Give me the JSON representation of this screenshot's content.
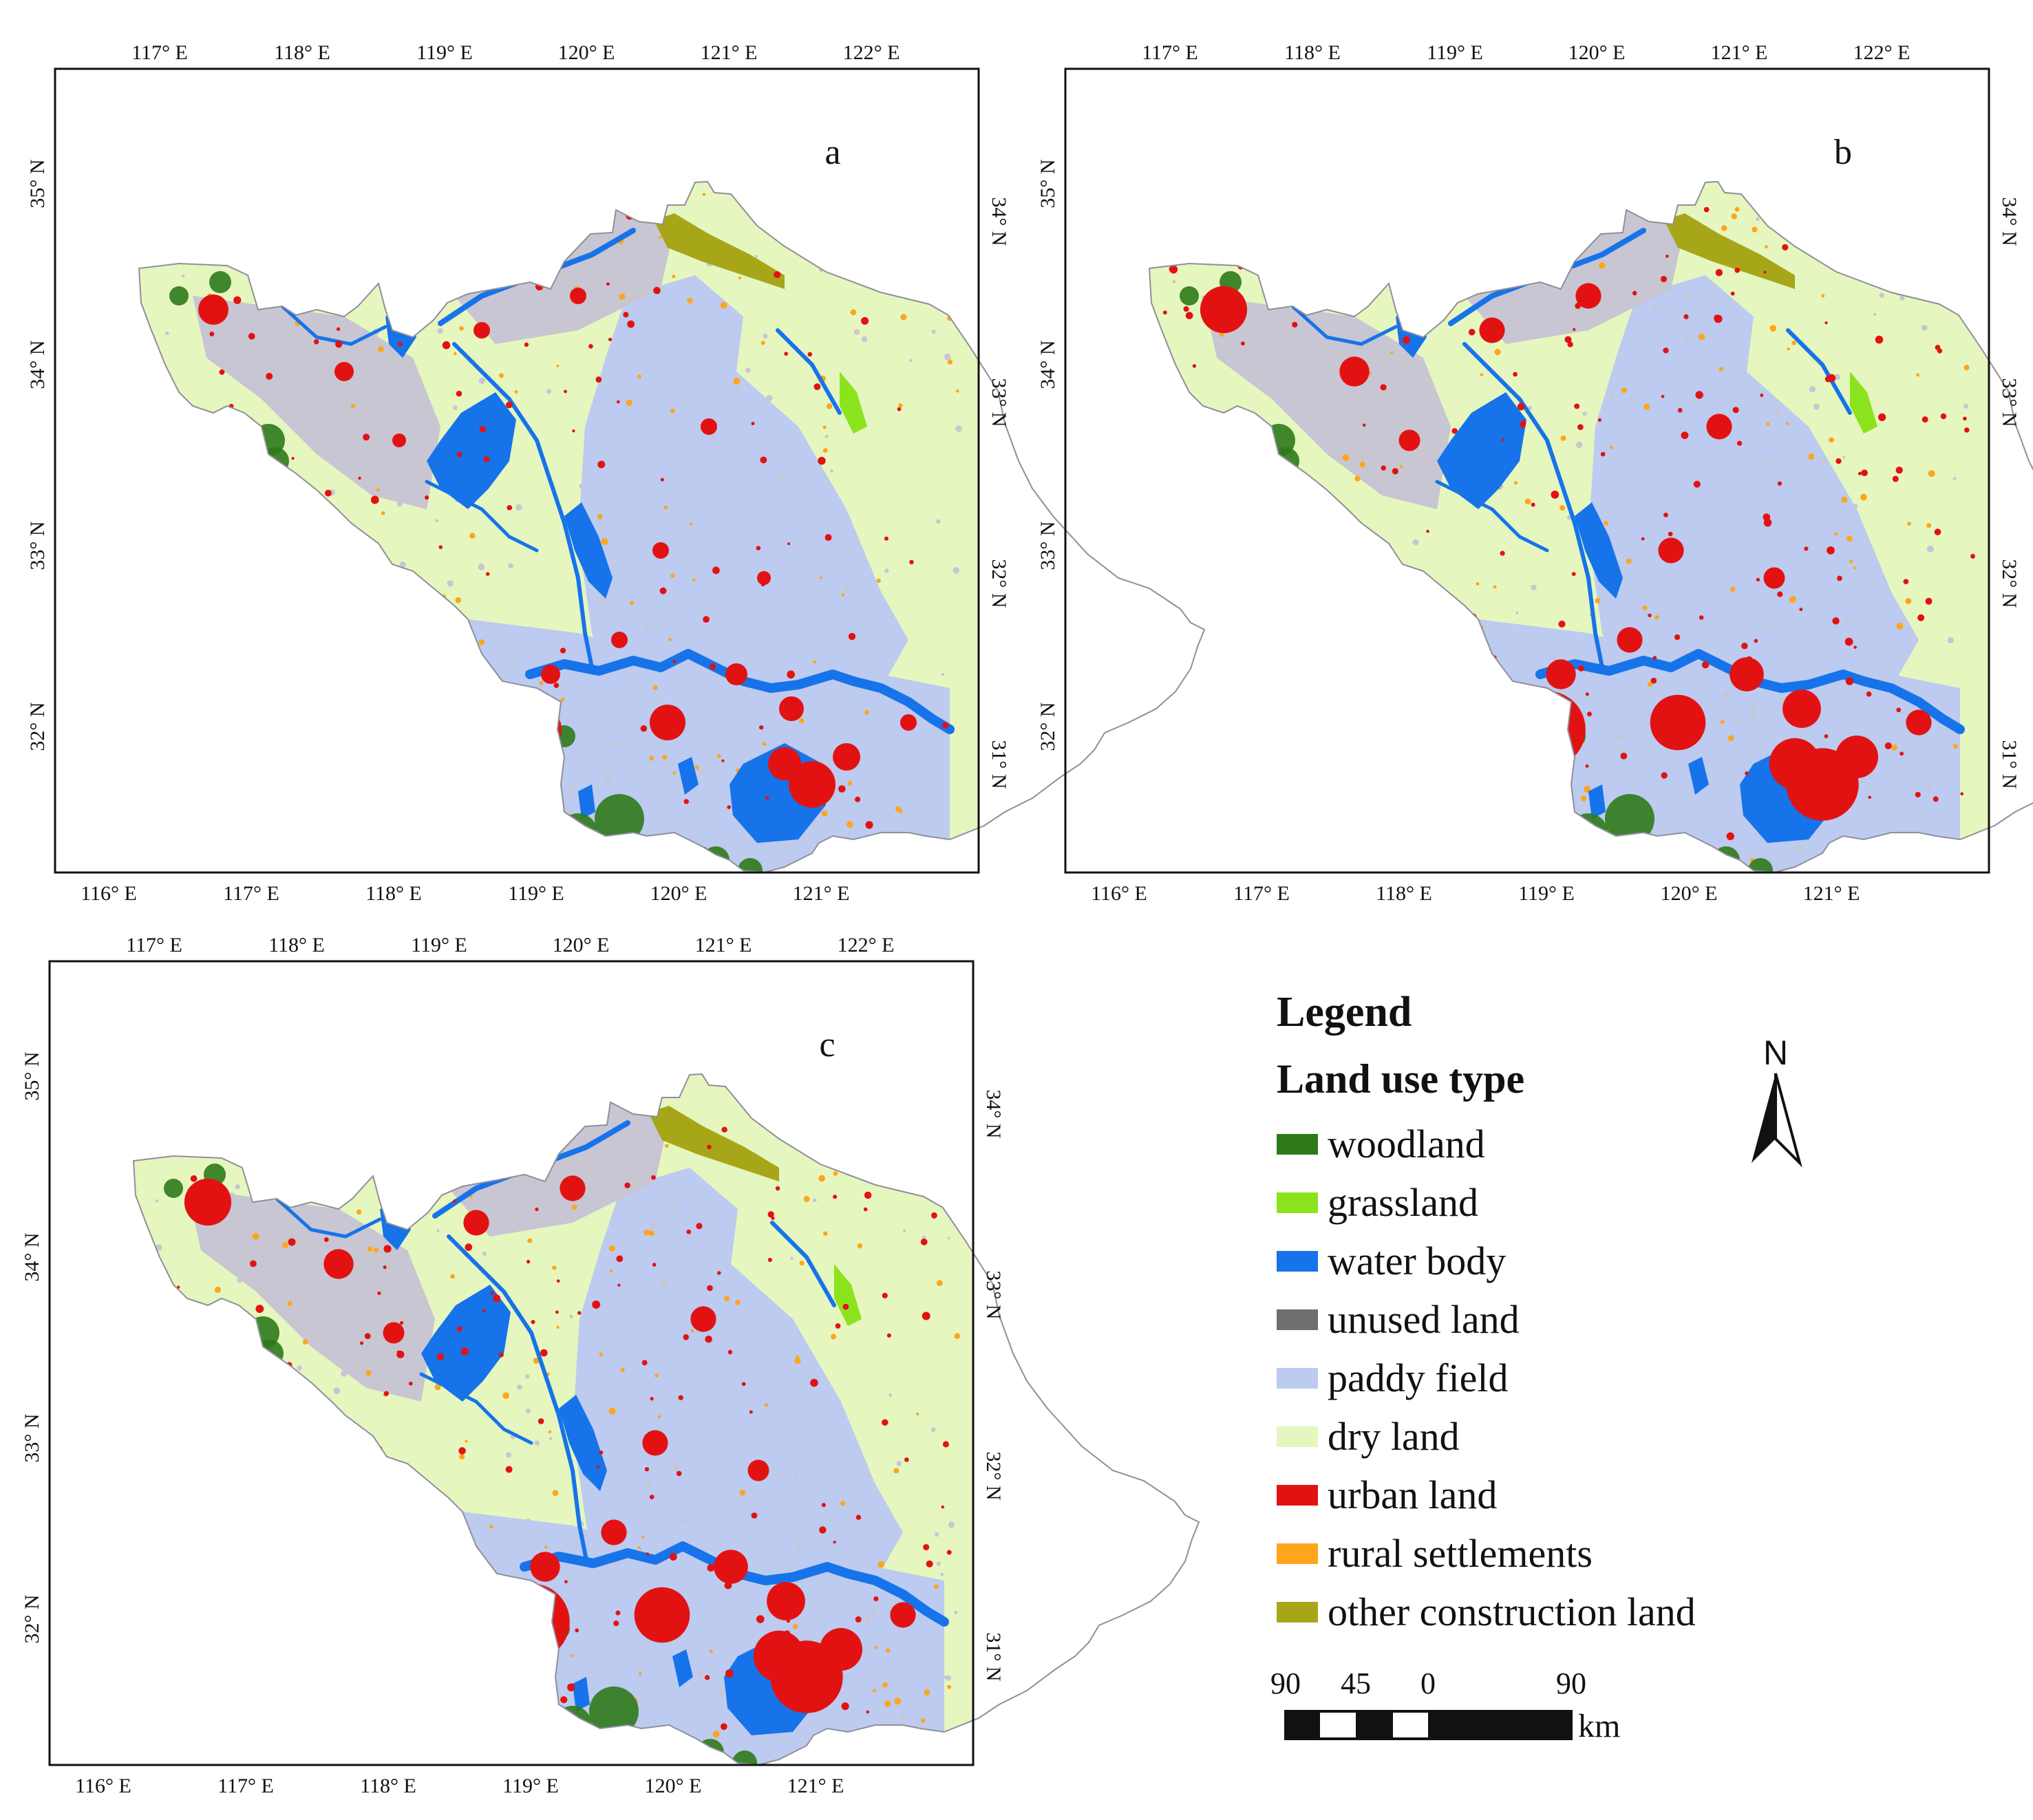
{
  "panels": [
    {
      "letter": "a",
      "lon_top": [
        "117° E",
        "118° E",
        "119° E",
        "120° E",
        "121° E",
        "122° E"
      ],
      "lon_bottom": [
        "116° E",
        "117° E",
        "118° E",
        "119° E",
        "120° E",
        "121° E"
      ],
      "lat_left": [
        "35° N",
        "34° N",
        "33° N",
        "32° N"
      ],
      "lat_right": [
        "34° N",
        "33° N",
        "32° N",
        "31° N"
      ],
      "urban_level": "low"
    },
    {
      "letter": "b",
      "lon_top": [
        "117° E",
        "118° E",
        "119° E",
        "120° E",
        "121° E",
        "122° E"
      ],
      "lon_bottom": [
        "116° E",
        "117° E",
        "118° E",
        "119° E",
        "120° E",
        "121° E"
      ],
      "lat_left": [
        "35° N",
        "34° N",
        "33° N",
        "32° N"
      ],
      "lat_right": [
        "34° N",
        "33° N",
        "32° N",
        "31° N"
      ],
      "urban_level": "high"
    },
    {
      "letter": "c",
      "lon_top": [
        "117° E",
        "118° E",
        "119° E",
        "120° E",
        "121° E",
        "122° E"
      ],
      "lon_bottom": [
        "116° E",
        "117° E",
        "118° E",
        "119° E",
        "120° E",
        "121° E"
      ],
      "lat_left": [
        "35° N",
        "34° N",
        "33° N",
        "32° N"
      ],
      "lat_right": [
        "34° N",
        "33° N",
        "32° N",
        "31° N"
      ],
      "urban_level": "high"
    }
  ],
  "legend": {
    "title": "Legend",
    "subtitle": "Land use type",
    "items": [
      {
        "label": "woodland",
        "color": "#2e7a1a"
      },
      {
        "label": "grassland",
        "color": "#8be31e"
      },
      {
        "label": "water body",
        "color": "#1673ea"
      },
      {
        "label": "unused land",
        "color": "#6e6e6e"
      },
      {
        "label": "paddy field",
        "color": "#bccbef"
      },
      {
        "label": "dry land",
        "color": "#e6f6bf"
      },
      {
        "label": "urban land",
        "color": "#e31212"
      },
      {
        "label": "rural settlements",
        "color": "#ffa51a"
      },
      {
        "label": "other construction land",
        "color": "#a7a618"
      }
    ]
  },
  "north_arrow": {
    "label": "N"
  },
  "scale_bar": {
    "ticks": [
      "90",
      "45",
      "0",
      "90"
    ],
    "unit": "km"
  },
  "colors": {
    "paddy": "#bccbef",
    "dry": "#e6f6bf",
    "greyfield": "#c8c6d2",
    "water": "#1673ea",
    "urban": "#e31212",
    "woodland": "#2e7a1a",
    "grassland": "#8be31e",
    "construction": "#a7a618",
    "rural": "#ffa51a"
  }
}
